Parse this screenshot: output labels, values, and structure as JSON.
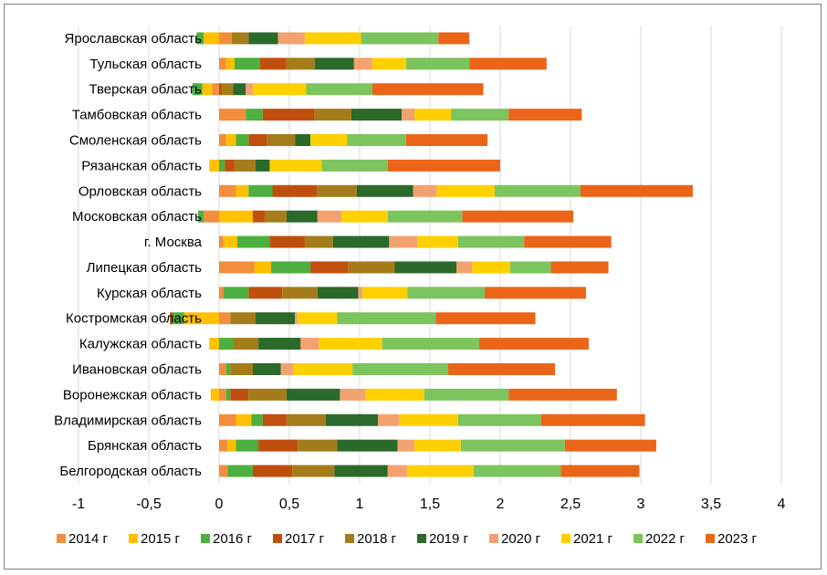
{
  "chart_data": {
    "type": "bar",
    "orientation": "horizontal",
    "stacked": true,
    "title": "",
    "xlabel": "",
    "ylabel": "",
    "xlim": [
      -1,
      4
    ],
    "xticks": [
      -1,
      -0.5,
      0,
      0.5,
      1,
      1.5,
      2,
      2.5,
      3,
      3.5,
      4
    ],
    "xtick_labels": [
      "-1",
      "-0,5",
      "0",
      "0,5",
      "1",
      "1,5",
      "2",
      "2,5",
      "3",
      "3,5",
      "4"
    ],
    "grid": "vertical",
    "legend_position": "bottom",
    "categories": [
      "Ярославская область",
      "Тульская область",
      "Тверская область",
      "Тамбовская область",
      "Смоленская область",
      "Рязанская область",
      "Орловская область",
      "Московская область",
      "г. Москва",
      "Липецкая область",
      "Курская область",
      "Костромская область",
      "Калужская область",
      "Ивановская область",
      "Воронежская область",
      "Владимирская область",
      "Брянская область",
      "Белгородская область"
    ],
    "series": [
      {
        "name": "2014 г",
        "color": "#f28e3c",
        "values": [
          0.09,
          0.05,
          -0.05,
          0.19,
          0.05,
          0.0,
          0.12,
          -0.11,
          0.03,
          0.25,
          0.03,
          0.08,
          0.0,
          0.05,
          0.05,
          0.12,
          0.06,
          0.06
        ]
      },
      {
        "name": "2015 г",
        "color": "#ffc000",
        "values": [
          -0.11,
          0.06,
          -0.07,
          0.0,
          0.07,
          -0.07,
          0.09,
          0.24,
          0.1,
          0.12,
          0.0,
          -0.25,
          -0.07,
          0.0,
          -0.06,
          0.11,
          0.06,
          0.0
        ]
      },
      {
        "name": "2016 г",
        "color": "#4caf3f",
        "values": [
          -0.05,
          0.18,
          -0.07,
          0.12,
          0.09,
          0.04,
          0.17,
          -0.04,
          0.23,
          0.28,
          0.18,
          -0.08,
          0.1,
          0.03,
          0.03,
          0.08,
          0.16,
          0.18
        ]
      },
      {
        "name": "2017 г",
        "color": "#c04f0e",
        "values": [
          0.0,
          0.19,
          0.02,
          0.37,
          0.13,
          0.07,
          0.32,
          0.09,
          0.25,
          0.27,
          0.24,
          -0.02,
          0.0,
          0.0,
          0.13,
          0.17,
          0.28,
          0.28
        ]
      },
      {
        "name": "2018 г",
        "color": "#a57c1a",
        "values": [
          0.12,
          0.2,
          0.08,
          0.26,
          0.2,
          0.15,
          0.28,
          0.15,
          0.2,
          0.33,
          0.25,
          0.18,
          0.18,
          0.16,
          0.27,
          0.28,
          0.28,
          0.3
        ]
      },
      {
        "name": "2019 г",
        "color": "#2b6a2a",
        "values": [
          0.21,
          0.28,
          0.09,
          0.36,
          0.11,
          0.1,
          0.4,
          0.22,
          0.4,
          0.44,
          0.29,
          0.28,
          0.3,
          0.2,
          0.38,
          0.37,
          0.43,
          0.38
        ]
      },
      {
        "name": "2020 г",
        "color": "#f4a170",
        "values": [
          0.19,
          0.13,
          0.05,
          0.09,
          0.0,
          0.0,
          0.17,
          0.17,
          0.2,
          0.11,
          0.03,
          0.02,
          0.13,
          0.09,
          0.18,
          0.15,
          0.12,
          0.14
        ]
      },
      {
        "name": "2021 г",
        "color": "#ffd000",
        "values": [
          0.4,
          0.24,
          0.38,
          0.26,
          0.26,
          0.37,
          0.41,
          0.33,
          0.29,
          0.27,
          0.32,
          0.28,
          0.45,
          0.42,
          0.42,
          0.42,
          0.33,
          0.47
        ]
      },
      {
        "name": "2022 г",
        "color": "#7cc45e",
        "values": [
          0.55,
          0.45,
          0.47,
          0.41,
          0.42,
          0.47,
          0.61,
          0.53,
          0.47,
          0.29,
          0.55,
          0.7,
          0.69,
          0.68,
          0.6,
          0.59,
          0.74,
          0.62
        ]
      },
      {
        "name": "2023 г",
        "color": "#eb6519",
        "values": [
          0.22,
          0.55,
          0.79,
          0.52,
          0.58,
          0.8,
          0.8,
          0.79,
          0.62,
          0.41,
          0.72,
          0.71,
          0.78,
          0.76,
          0.77,
          0.74,
          0.65,
          0.56
        ]
      }
    ]
  }
}
